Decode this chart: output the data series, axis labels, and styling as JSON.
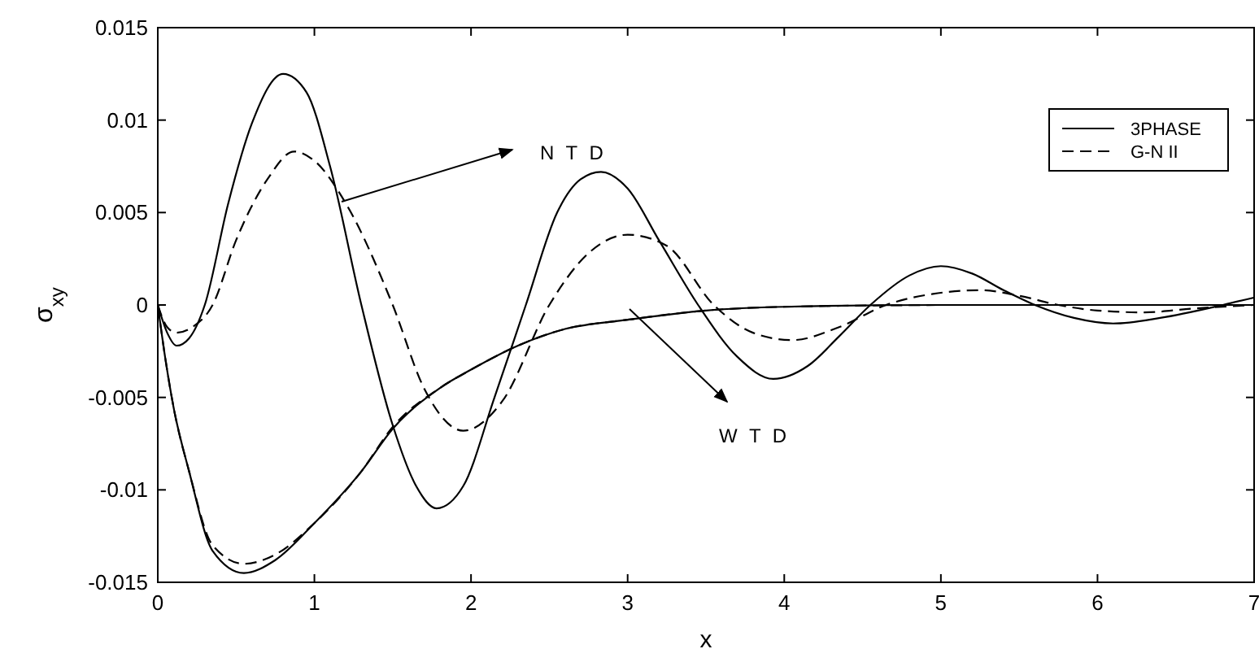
{
  "chart_data": {
    "type": "line",
    "xlabel": "x",
    "ylabel": "σ$_{xy}$",
    "xlim": [
      0,
      7
    ],
    "ylim": [
      -0.015,
      0.015
    ],
    "xticks": [
      0,
      1,
      2,
      3,
      4,
      5,
      6,
      7
    ],
    "yticks": [
      -0.015,
      -0.01,
      -0.005,
      0,
      0.005,
      0.01,
      0.015
    ],
    "grid": false,
    "legend": "top right",
    "annotations": [
      "N T D",
      "W T D"
    ],
    "series": [
      {
        "name": "3PHASE",
        "color": "#000000",
        "line_style": "solid",
        "x": [
          0,
          0.06,
          0.12,
          0.2,
          0.3,
          0.45,
          0.6,
          0.8,
          0.95,
          1.1,
          1.3,
          1.5,
          1.65,
          1.78,
          1.95,
          2.15,
          2.35,
          2.55,
          2.7,
          2.83,
          3.0,
          3.2,
          3.45,
          3.7,
          3.93,
          4.15,
          4.35,
          4.55,
          4.8,
          5.0,
          5.2,
          5.4,
          5.6,
          5.85,
          6.1,
          6.4,
          6.8,
          7
        ],
        "values": [
          0,
          -0.0015,
          -0.0022,
          -0.0018,
          0,
          0.0055,
          0.0098,
          0.0125,
          0.0115,
          0.0075,
          0,
          -0.0065,
          -0.0098,
          -0.011,
          -0.0098,
          -0.005,
          0,
          0.005,
          0.0068,
          0.0072,
          0.0063,
          0.0035,
          0,
          -0.0028,
          -0.004,
          -0.0033,
          -0.0017,
          0,
          0.0016,
          0.0021,
          0.0017,
          0.0008,
          0,
          -0.0007,
          -0.001,
          -0.0007,
          0,
          0.0004
        ]
      },
      {
        "name": "G-N II",
        "color": "#000000",
        "line_style": "dashed",
        "x": [
          0,
          0.06,
          0.12,
          0.22,
          0.35,
          0.5,
          0.7,
          0.87,
          1.0,
          1.2,
          1.5,
          1.7,
          1.95,
          2.2,
          2.5,
          2.75,
          3.0,
          3.25,
          3.55,
          3.8,
          4.05,
          4.35,
          4.65,
          4.95,
          5.25,
          5.5,
          5.75,
          6.0,
          6.3,
          6.6,
          7
        ],
        "values": [
          0,
          -0.0012,
          -0.0015,
          -0.0012,
          0,
          0.0035,
          0.0068,
          0.0083,
          0.0078,
          0.0055,
          0,
          -0.0045,
          -0.0068,
          -0.0052,
          0,
          0.0028,
          0.0038,
          0.0032,
          0,
          -0.0015,
          -0.0019,
          -0.0012,
          0,
          0.0006,
          0.0008,
          0.0005,
          0,
          -0.0003,
          -0.0004,
          -0.0002,
          0
        ]
      },
      {
        "color": "#000000",
        "line_style": "solid",
        "x": [
          0,
          0.05,
          0.1,
          0.2,
          0.35,
          0.55,
          0.75,
          1.0,
          1.3,
          1.5,
          1.8,
          2.0,
          2.3,
          2.6,
          3.0,
          3.5,
          4.0,
          5.0,
          6.0,
          7
        ],
        "values": [
          0,
          -0.003,
          -0.0055,
          -0.009,
          -0.0133,
          -0.0145,
          -0.0138,
          -0.0118,
          -0.009,
          -0.0067,
          -0.0045,
          -0.0035,
          -0.0022,
          -0.0013,
          -0.0008,
          -0.0003,
          -0.0001,
          0,
          0,
          0
        ]
      },
      {
        "color": "#000000",
        "line_style": "dashed",
        "x": [
          0,
          0.05,
          0.1,
          0.2,
          0.35,
          0.55,
          0.75,
          1.0,
          1.3,
          1.5,
          1.8,
          2.0,
          2.3,
          2.6,
          3.0,
          3.5,
          4.0,
          5.0
        ],
        "values": [
          0,
          -0.003,
          -0.0055,
          -0.009,
          -0.013,
          -0.014,
          -0.0135,
          -0.0118,
          -0.009,
          -0.0066,
          -0.0045,
          -0.0035,
          -0.0022,
          -0.0013,
          -0.0008,
          -0.0003,
          -0.0001,
          0
        ]
      }
    ]
  }
}
